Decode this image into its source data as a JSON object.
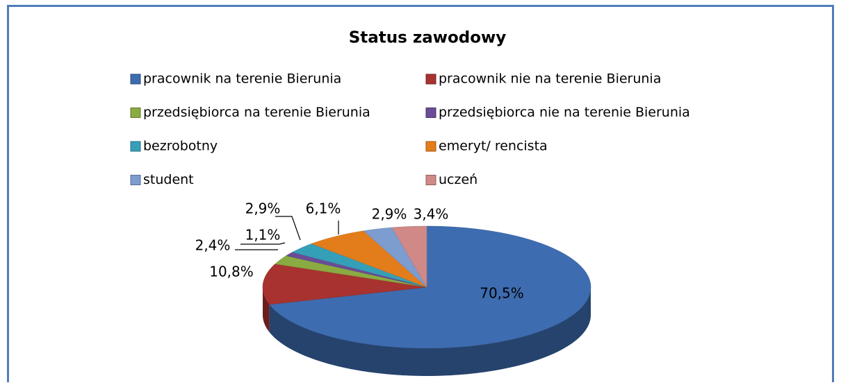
{
  "chart_data": {
    "type": "pie3d",
    "title": "Status zawodowy",
    "categories": [
      "pracownik na terenie Bierunia",
      "pracownik nie na terenie Bierunia",
      "przedsiębiorca na terenie Bierunia",
      "przedsiębiorca nie na terenie Bierunia",
      "bezrobotny",
      "emeryt/ rencista",
      "student",
      "uczeń"
    ],
    "values": [
      70.5,
      10.8,
      2.4,
      1.1,
      2.9,
      6.1,
      2.9,
      3.4
    ],
    "value_labels": [
      "70,5%",
      "10,8%",
      "2,4%",
      "1,1%",
      "2,9%",
      "6,1%",
      "2,9%",
      "3,4%"
    ],
    "colors": [
      "#3d6cb0",
      "#a8322f",
      "#8aab42",
      "#6b4c97",
      "#359fb8",
      "#e37d1b",
      "#7d9ccf",
      "#d08987"
    ],
    "legend": "top"
  }
}
